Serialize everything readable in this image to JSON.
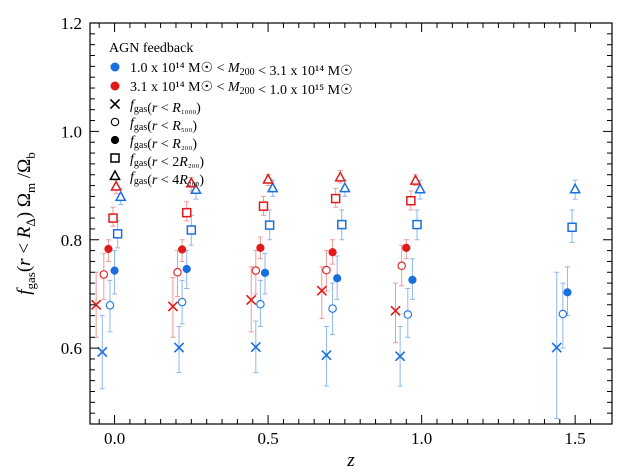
{
  "chart_data": {
    "type": "scatter",
    "xlabel": "z",
    "ylabel": "f_gas(r < R_Δ) Ω_m / Ω_b",
    "xlim": [
      -0.08,
      1.62
    ],
    "ylim": [
      0.46,
      1.2
    ],
    "x_ticks": [
      "0.0",
      "0.5",
      "1.0",
      "1.5"
    ],
    "x_tick_values": [
      0,
      0.5,
      1,
      1.5
    ],
    "y_ticks": [
      "0.6",
      "0.8",
      "1.0",
      "1.2"
    ],
    "y_tick_values": [
      0.6,
      0.8,
      1.0,
      1.2
    ],
    "grid": false,
    "legend_position": "top-left",
    "colors": {
      "low_mass": "#1a6fe0",
      "high_mass": "#e01a1a",
      "low_mass_err": "#8fb8ee",
      "high_mass_err": "#ee9a9a"
    },
    "legend": {
      "title": "AGN feedback",
      "mass_bins": [
        {
          "key": "low_mass",
          "text": "1.0 x 10¹⁴ M☉ < M₂₀₀ < 3.1 x 10¹⁴ M☉"
        },
        {
          "key": "high_mass",
          "text": "3.1 x 10¹⁴ M☉ < M₂₀₀ < 1.0 x 10¹⁵ M☉"
        }
      ],
      "apertures": [
        {
          "marker": "x",
          "text": "f_gas(r < R₁₀₀₀)"
        },
        {
          "marker": "open_circle",
          "text": "f_gas(r < R₅₀₀)"
        },
        {
          "marker": "filled_circle",
          "text": "f_gas(r < R₂₀₀)"
        },
        {
          "marker": "square",
          "text": "f_gas(r < 2R₂₀₀)"
        },
        {
          "marker": "triangle",
          "text": "f_gas(r < 4R₂₀₀)"
        }
      ]
    },
    "series": [
      {
        "name": "1.0 x 10¹⁴ M☉ < M₂₀₀ < 3.1 x 10¹⁴ M☉ — f_gas(r < R₁₀₀₀)",
        "mass": "low_mass",
        "marker": "x",
        "points": [
          {
            "x": -0.04,
            "y": 0.593,
            "lo": 0.525,
            "hi": 0.66
          },
          {
            "x": 0.21,
            "y": 0.601,
            "lo": 0.555,
            "hi": 0.64
          },
          {
            "x": 0.46,
            "y": 0.602,
            "lo": 0.555,
            "hi": 0.65
          },
          {
            "x": 0.69,
            "y": 0.587,
            "lo": 0.53,
            "hi": 0.64
          },
          {
            "x": 0.93,
            "y": 0.585,
            "lo": 0.53,
            "hi": 0.64
          },
          {
            "x": 1.44,
            "y": 0.601,
            "lo": 0.47,
            "hi": 0.74
          }
        ]
      },
      {
        "name": "1.0 x 10¹⁴ M☉ < M₂₀₀ < 3.1 x 10¹⁴ M☉ — f_gas(r < R₅₀₀)",
        "mass": "low_mass",
        "marker": "open_circle",
        "points": [
          {
            "x": -0.015,
            "y": 0.679,
            "lo": 0.63,
            "hi": 0.725
          },
          {
            "x": 0.22,
            "y": 0.685,
            "lo": 0.645,
            "hi": 0.725
          },
          {
            "x": 0.475,
            "y": 0.681,
            "lo": 0.64,
            "hi": 0.725
          },
          {
            "x": 0.71,
            "y": 0.673,
            "lo": 0.625,
            "hi": 0.72
          },
          {
            "x": 0.955,
            "y": 0.662,
            "lo": 0.62,
            "hi": 0.71
          },
          {
            "x": 1.46,
            "y": 0.663,
            "lo": 0.6,
            "hi": 0.72
          }
        ]
      },
      {
        "name": "1.0 x 10¹⁴ M☉ < M₂₀₀ < 3.1 x 10¹⁴ M☉ — f_gas(r < R₂₀₀)",
        "mass": "low_mass",
        "marker": "filled_circle",
        "points": [
          {
            "x": 0.0,
            "y": 0.743,
            "lo": 0.7,
            "hi": 0.78
          },
          {
            "x": 0.235,
            "y": 0.746,
            "lo": 0.71,
            "hi": 0.78
          },
          {
            "x": 0.49,
            "y": 0.739,
            "lo": 0.7,
            "hi": 0.775
          },
          {
            "x": 0.725,
            "y": 0.729,
            "lo": 0.69,
            "hi": 0.77
          },
          {
            "x": 0.97,
            "y": 0.726,
            "lo": 0.69,
            "hi": 0.765
          },
          {
            "x": 1.475,
            "y": 0.703,
            "lo": 0.66,
            "hi": 0.75
          }
        ]
      },
      {
        "name": "1.0 x 10¹⁴ M☉ < M₂₀₀ < 3.1 x 10¹⁴ M☉ — f_gas(r < 2R₂₀₀)",
        "mass": "low_mass",
        "marker": "square",
        "points": [
          {
            "x": 0.01,
            "y": 0.811,
            "lo": 0.785,
            "hi": 0.835
          },
          {
            "x": 0.25,
            "y": 0.818,
            "lo": 0.79,
            "hi": 0.845
          },
          {
            "x": 0.505,
            "y": 0.827,
            "lo": 0.8,
            "hi": 0.855
          },
          {
            "x": 0.74,
            "y": 0.828,
            "lo": 0.8,
            "hi": 0.855
          },
          {
            "x": 0.985,
            "y": 0.828,
            "lo": 0.8,
            "hi": 0.855
          },
          {
            "x": 1.49,
            "y": 0.823,
            "lo": 0.795,
            "hi": 0.855
          }
        ]
      },
      {
        "name": "1.0 x 10¹⁴ M☉ < M₂₀₀ < 3.1 x 10¹⁴ M☉ — f_gas(r < 4R₂₀₀)",
        "mass": "low_mass",
        "marker": "triangle",
        "points": [
          {
            "x": 0.02,
            "y": 0.879,
            "lo": 0.865,
            "hi": 0.895
          },
          {
            "x": 0.265,
            "y": 0.892,
            "lo": 0.875,
            "hi": 0.905
          },
          {
            "x": 0.515,
            "y": 0.895,
            "lo": 0.88,
            "hi": 0.91
          },
          {
            "x": 0.75,
            "y": 0.895,
            "lo": 0.88,
            "hi": 0.91
          },
          {
            "x": 0.995,
            "y": 0.893,
            "lo": 0.875,
            "hi": 0.91
          },
          {
            "x": 1.5,
            "y": 0.893,
            "lo": 0.875,
            "hi": 0.91
          }
        ]
      },
      {
        "name": "3.1 x 10¹⁴ M☉ < M₂₀₀ < 1.0 x 10¹⁵ M☉ — f_gas(r < R₁₀₀₀)",
        "mass": "high_mass",
        "marker": "x",
        "points": [
          {
            "x": -0.06,
            "y": 0.68,
            "lo": 0.62,
            "hi": 0.74
          },
          {
            "x": 0.19,
            "y": 0.677,
            "lo": 0.62,
            "hi": 0.73
          },
          {
            "x": 0.445,
            "y": 0.689,
            "lo": 0.63,
            "hi": 0.75
          },
          {
            "x": 0.675,
            "y": 0.706,
            "lo": 0.655,
            "hi": 0.75
          },
          {
            "x": 0.915,
            "y": 0.669,
            "lo": 0.61,
            "hi": 0.72
          }
        ]
      },
      {
        "name": "3.1 x 10¹⁴ M☉ < M₂₀₀ < 1.0 x 10¹⁵ M☉ — f_gas(r < R₅₀₀)",
        "mass": "high_mass",
        "marker": "open_circle",
        "points": [
          {
            "x": -0.035,
            "y": 0.736,
            "lo": 0.69,
            "hi": 0.775
          },
          {
            "x": 0.205,
            "y": 0.74,
            "lo": 0.695,
            "hi": 0.78
          },
          {
            "x": 0.46,
            "y": 0.743,
            "lo": 0.7,
            "hi": 0.78
          },
          {
            "x": 0.69,
            "y": 0.744,
            "lo": 0.705,
            "hi": 0.78
          },
          {
            "x": 0.935,
            "y": 0.752,
            "lo": 0.715,
            "hi": 0.79
          }
        ]
      },
      {
        "name": "3.1 x 10¹⁴ M☉ < M₂₀₀ < 1.0 x 10¹⁵ M☉ — f_gas(r < R₂₀₀)",
        "mass": "high_mass",
        "marker": "filled_circle",
        "points": [
          {
            "x": -0.02,
            "y": 0.783,
            "lo": 0.76,
            "hi": 0.8
          },
          {
            "x": 0.22,
            "y": 0.782,
            "lo": 0.76,
            "hi": 0.8
          },
          {
            "x": 0.475,
            "y": 0.785,
            "lo": 0.765,
            "hi": 0.805
          },
          {
            "x": 0.71,
            "y": 0.777,
            "lo": 0.755,
            "hi": 0.8
          },
          {
            "x": 0.95,
            "y": 0.785,
            "lo": 0.765,
            "hi": 0.8
          }
        ]
      },
      {
        "name": "3.1 x 10¹⁴ M☉ < M₂₀₀ < 1.0 x 10¹⁵ M☉ — f_gas(r < 2R₂₀₀)",
        "mass": "high_mass",
        "marker": "square",
        "points": [
          {
            "x": -0.005,
            "y": 0.84,
            "lo": 0.825,
            "hi": 0.86
          },
          {
            "x": 0.235,
            "y": 0.85,
            "lo": 0.835,
            "hi": 0.87
          },
          {
            "x": 0.485,
            "y": 0.862,
            "lo": 0.845,
            "hi": 0.88
          },
          {
            "x": 0.72,
            "y": 0.876,
            "lo": 0.86,
            "hi": 0.895
          },
          {
            "x": 0.965,
            "y": 0.872,
            "lo": 0.855,
            "hi": 0.89
          }
        ]
      },
      {
        "name": "3.1 x 10¹⁴ M☉ < M₂₀₀ < 1.0 x 10¹⁵ M☉ — f_gas(r < 4R₂₀₀)",
        "mass": "high_mass",
        "marker": "triangle",
        "points": [
          {
            "x": 0.005,
            "y": 0.898,
            "lo": 0.885,
            "hi": 0.91
          },
          {
            "x": 0.25,
            "y": 0.904,
            "lo": 0.89,
            "hi": 0.915
          },
          {
            "x": 0.5,
            "y": 0.911,
            "lo": 0.9,
            "hi": 0.92
          },
          {
            "x": 0.735,
            "y": 0.915,
            "lo": 0.905,
            "hi": 0.928
          },
          {
            "x": 0.98,
            "y": 0.909,
            "lo": 0.9,
            "hi": 0.92
          }
        ]
      }
    ]
  }
}
